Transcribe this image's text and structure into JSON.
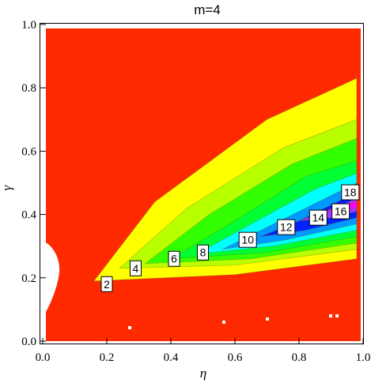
{
  "chart_data": {
    "type": "contour",
    "title": "m=4",
    "xlabel": "η",
    "ylabel": "γ",
    "xlim": [
      0.0,
      1.0
    ],
    "ylim": [
      0.0,
      1.0
    ],
    "x_ticks": [
      "0.0",
      "0.2",
      "0.4",
      "0.6",
      "0.8",
      "1.0"
    ],
    "y_ticks": [
      "0.0",
      "0.2",
      "0.4",
      "0.6",
      "0.8",
      "1.0"
    ],
    "levels": [
      {
        "value": 2,
        "color": "#ffff00"
      },
      {
        "value": 4,
        "color": "#b8ff00"
      },
      {
        "value": 6,
        "color": "#33ff00"
      },
      {
        "value": 8,
        "color": "#00ff33"
      },
      {
        "value": 10,
        "color": "#00ffff"
      },
      {
        "value": 12,
        "color": "#0099ff"
      },
      {
        "value": 14,
        "color": "#0022ff"
      },
      {
        "value": 16,
        "color": "#aa33ff"
      },
      {
        "value": 18,
        "color": "#ff00ff"
      }
    ],
    "contour_labels": [
      {
        "text": "2",
        "x": 0.2,
        "y": 0.18
      },
      {
        "text": "4",
        "x": 0.29,
        "y": 0.23
      },
      {
        "text": "6",
        "x": 0.41,
        "y": 0.26
      },
      {
        "text": "8",
        "x": 0.5,
        "y": 0.28
      },
      {
        "text": "10",
        "x": 0.64,
        "y": 0.32
      },
      {
        "text": "12",
        "x": 0.76,
        "y": 0.36
      },
      {
        "text": "14",
        "x": 0.86,
        "y": 0.39
      },
      {
        "text": "16",
        "x": 0.93,
        "y": 0.41
      },
      {
        "text": "18",
        "x": 0.96,
        "y": 0.47
      }
    ],
    "background_color": "#ff2a00",
    "grid": false
  }
}
